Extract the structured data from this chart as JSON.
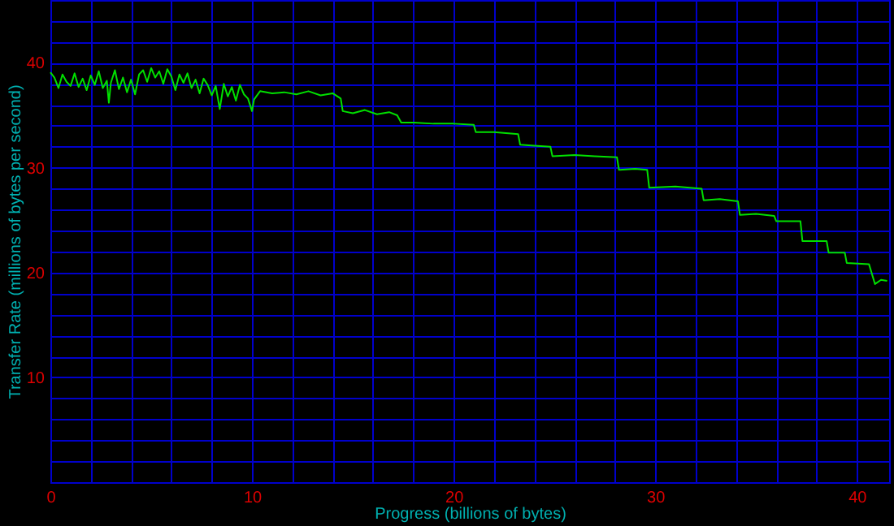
{
  "chart_data": {
    "type": "line",
    "xlabel": "Progress (billions of bytes)",
    "ylabel": "Transfer Rate (millions of bytes per second)",
    "x": [
      0,
      0.2,
      0.4,
      0.6,
      0.8,
      1.0,
      1.2,
      1.4,
      1.6,
      1.8,
      2.0,
      2.2,
      2.4,
      2.6,
      2.8,
      2.9,
      3.0,
      3.2,
      3.4,
      3.6,
      3.8,
      4.0,
      4.2,
      4.4,
      4.6,
      4.8,
      5.0,
      5.2,
      5.4,
      5.6,
      5.8,
      6.0,
      6.2,
      6.4,
      6.6,
      6.8,
      7.0,
      7.2,
      7.4,
      7.6,
      7.8,
      8.0,
      8.2,
      8.4,
      8.6,
      8.8,
      9.0,
      9.2,
      9.4,
      9.6,
      9.8,
      10.0,
      10.1,
      10.4,
      11.0,
      11.6,
      12.2,
      12.8,
      13.4,
      14.0,
      14.4,
      14.5,
      15.0,
      15.6,
      16.2,
      16.8,
      17.2,
      17.4,
      18.0,
      19.0,
      20.0,
      21.0,
      21.1,
      22.0,
      23.2,
      23.3,
      24.0,
      24.8,
      24.9,
      26.0,
      27.0,
      28.1,
      28.2,
      29.0,
      29.6,
      29.7,
      31.0,
      32.3,
      32.4,
      33.2,
      34.1,
      34.2,
      35.0,
      35.9,
      36.0,
      37.2,
      37.3,
      38.5,
      38.6,
      39.4,
      39.5,
      40.6,
      40.9,
      41.2,
      41.5
    ],
    "series": [
      {
        "color": "#00e000",
        "values": [
          39.1,
          38.6,
          37.6,
          38.9,
          38.2,
          37.8,
          39.0,
          37.7,
          38.5,
          37.4,
          38.8,
          37.9,
          39.2,
          37.6,
          38.3,
          36.2,
          38.1,
          39.3,
          37.5,
          38.6,
          37.2,
          38.4,
          37.0,
          38.9,
          39.3,
          38.2,
          39.5,
          38.6,
          39.2,
          38.0,
          39.4,
          38.7,
          37.4,
          38.9,
          38.1,
          39.0,
          37.6,
          38.4,
          37.1,
          38.5,
          37.9,
          36.9,
          37.8,
          35.6,
          38.0,
          36.8,
          37.7,
          36.4,
          37.9,
          37.0,
          36.6,
          35.4,
          36.5,
          37.3,
          37.1,
          37.2,
          37.0,
          37.3,
          36.9,
          37.1,
          36.6,
          35.4,
          35.2,
          35.5,
          35.1,
          35.3,
          35.0,
          34.3,
          34.3,
          34.2,
          34.2,
          34.1,
          33.4,
          33.4,
          33.2,
          32.2,
          32.1,
          32.0,
          31.1,
          31.2,
          31.1,
          31.0,
          29.8,
          29.9,
          29.8,
          28.1,
          28.2,
          28.0,
          26.9,
          27.0,
          26.8,
          25.5,
          25.6,
          25.4,
          24.9,
          24.9,
          23.0,
          23.0,
          21.9,
          21.9,
          20.9,
          20.8,
          18.9,
          19.3,
          19.2
        ]
      }
    ],
    "xlim": [
      0,
      41.6
    ],
    "ylim": [
      0,
      46
    ],
    "xticks": [
      0,
      {
        "value": 2,
        "label": null
      },
      {
        "value": 4,
        "label": null
      },
      {
        "value": 6,
        "label": null
      },
      {
        "value": 8,
        "label": null
      },
      10,
      {
        "value": 12,
        "label": null
      },
      {
        "value": 14,
        "label": null
      },
      {
        "value": 16,
        "label": null
      },
      {
        "value": 18,
        "label": null
      },
      20,
      {
        "value": 22,
        "label": null
      },
      {
        "value": 24,
        "label": null
      },
      {
        "value": 26,
        "label": null
      },
      {
        "value": 28,
        "label": null
      },
      30,
      {
        "value": 32,
        "label": null
      },
      {
        "value": 34,
        "label": null
      },
      {
        "value": 36,
        "label": null
      },
      {
        "value": 38,
        "label": null
      },
      40
    ],
    "yticks": [
      {
        "value": 0,
        "label": null
      },
      {
        "value": 2,
        "label": null
      },
      {
        "value": 4,
        "label": null
      },
      {
        "value": 6,
        "label": null
      },
      {
        "value": 8,
        "label": null
      },
      10,
      {
        "value": 12,
        "label": null
      },
      {
        "value": 14,
        "label": null
      },
      {
        "value": 16,
        "label": null
      },
      {
        "value": 18,
        "label": null
      },
      20,
      {
        "value": 22,
        "label": null
      },
      {
        "value": 24,
        "label": null
      },
      {
        "value": 26,
        "label": null
      },
      {
        "value": 28,
        "label": null
      },
      30,
      {
        "value": 32,
        "label": null
      },
      {
        "value": 34,
        "label": null
      },
      {
        "value": 36,
        "label": null
      },
      {
        "value": 38,
        "label": null
      },
      40,
      {
        "value": 42,
        "label": null
      },
      {
        "value": 44,
        "label": null
      }
    ],
    "grid": true,
    "marker": "none",
    "line_style": "solid"
  }
}
